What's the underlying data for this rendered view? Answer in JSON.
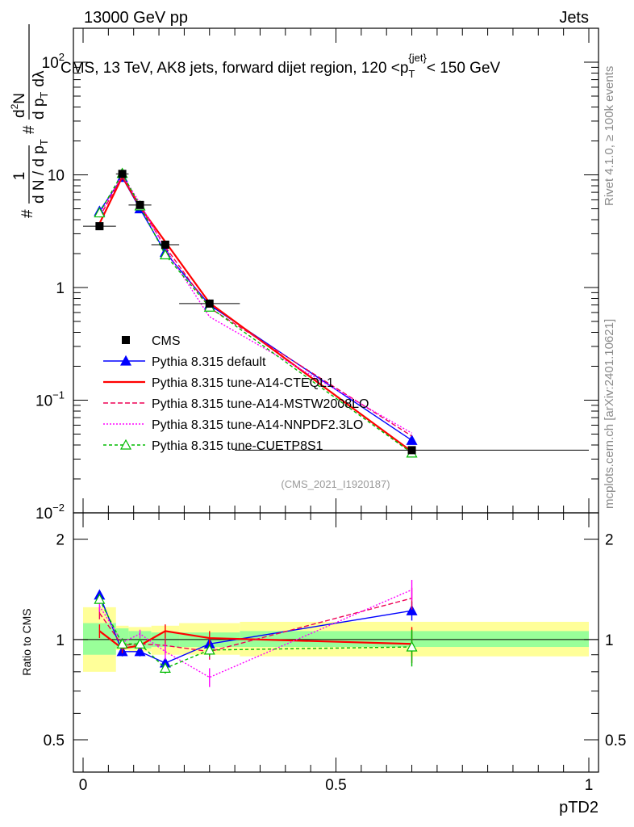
{
  "header": {
    "left": "13000 GeV pp",
    "right": "Jets"
  },
  "side_labels": {
    "rivet": "Rivet 4.1.0, ≥ 100k events",
    "mcplots": "mcplots.cern.ch [arXiv:2401.10621]"
  },
  "chart_data": [
    {
      "type": "line",
      "name": "main-panel",
      "title": "CMS, 13 TeV, AK8 jets, forward dijet region, 120 <p_T^{jet}< 150 GeV",
      "title_parts": {
        "pre": "CMS, 13 TeV, AK8 jets, forward dijet region, 120 <p",
        "sub": "T",
        "sup": "{jet}",
        "post": "< 150 GeV"
      },
      "ylabel_parts": {
        "prefix": "1",
        "denom": "d N / d p",
        "denom_sub": "T",
        "lead": "#",
        "mid": "#",
        "num": "d",
        "num_sup": "2",
        "num_tail": "N",
        "d_den": "d p",
        "d_den_sub": "T",
        "d_lambda": "dλ"
      },
      "yscale": "log",
      "ylim": [
        0.01,
        200
      ],
      "yticks": [
        {
          "value": 0.01,
          "label_base": "10",
          "label_exp": "−2"
        },
        {
          "value": 0.1,
          "label_base": "10",
          "label_exp": "−1"
        },
        {
          "value": 1,
          "label_base": "1",
          "label_exp": ""
        },
        {
          "value": 10,
          "label_base": "10",
          "label_exp": ""
        },
        {
          "value": 100,
          "label_base": "10",
          "label_exp": "2"
        }
      ],
      "xlim": [
        0,
        1
      ],
      "watermark": "(CMS_2021_I1920187)",
      "legend_position": "center-left",
      "data": {
        "name": "CMS",
        "x": [
          0.0325,
          0.0775,
          0.1125,
          0.1625,
          0.25,
          0.65
        ],
        "xerr": [
          0.0325,
          0.0125,
          0.0225,
          0.0275,
          0.06,
          0.35
        ],
        "y": [
          3.5,
          10.2,
          5.4,
          2.4,
          0.72,
          0.036
        ],
        "color": "#000000"
      },
      "series": [
        {
          "name": "Pythia 8.315 default",
          "color": "#0000ff",
          "dash": "",
          "marker": "triangle-filled",
          "y": [
            4.75,
            9.5,
            5.0,
            2.05,
            0.7,
            0.044
          ]
        },
        {
          "name": "Pythia 8.315 tune-A14-CTEQL1",
          "color": "#ff0000",
          "dash": "",
          "marker": "none",
          "y": [
            3.7,
            9.6,
            5.2,
            2.55,
            0.73,
            0.035
          ]
        },
        {
          "name": "Pythia 8.315 tune-A14-MSTW2008LO",
          "color": "#ee0055",
          "dash": "6,3",
          "marker": "none",
          "y": [
            4.2,
            9.8,
            5.2,
            2.3,
            0.66,
            0.048
          ]
        },
        {
          "name": "Pythia 8.315 tune-A14-NNPDF2.3LO",
          "color": "#ff00ff",
          "dash": "2,2",
          "marker": "none",
          "y": [
            4.4,
            10.0,
            5.6,
            2.2,
            0.55,
            0.051
          ]
        },
        {
          "name": "Pythia 8.315 tune-CUETP8S1",
          "color": "#00bb00",
          "dash": "4,3",
          "marker": "triangle-open",
          "y": [
            4.6,
            10.3,
            5.3,
            1.95,
            0.67,
            0.034
          ]
        }
      ]
    },
    {
      "type": "line",
      "name": "ratio-panel",
      "ylabel": "Ratio to CMS",
      "ylim": [
        0.4,
        2.4
      ],
      "yscale": "log",
      "yticks": [
        {
          "value": 0.5,
          "label": "0.5"
        },
        {
          "value": 1,
          "label": "1"
        },
        {
          "value": 2,
          "label": "2"
        }
      ],
      "xlabel": "pTD2",
      "xlim": [
        0,
        1
      ],
      "xticks": [
        {
          "value": 0,
          "label": "0"
        },
        {
          "value": 0.5,
          "label": "0.5"
        },
        {
          "value": 1,
          "label": "1"
        }
      ],
      "bands": {
        "edges": [
          0,
          0.065,
          0.09,
          0.135,
          0.19,
          0.31,
          1.0
        ],
        "stat": [
          [
            0.9,
            1.12
          ],
          [
            0.94,
            1.08
          ],
          [
            0.94,
            1.06
          ],
          [
            0.95,
            1.05
          ],
          [
            0.95,
            1.05
          ],
          [
            0.95,
            1.06
          ]
        ],
        "total": [
          [
            0.8,
            1.25
          ],
          [
            0.93,
            1.1
          ],
          [
            0.92,
            1.09
          ],
          [
            0.9,
            1.1
          ],
          [
            0.9,
            1.12
          ],
          [
            0.89,
            1.13
          ]
        ],
        "stat_color": "#99ff99",
        "total_color": "#ffff99"
      },
      "series": [
        {
          "name": "Pythia 8.315 default",
          "y": [
            1.36,
            0.92,
            0.92,
            0.85,
            0.97,
            1.22
          ],
          "err": [
            0.03,
            0.03,
            0.03,
            0.03,
            0.03,
            0.08
          ]
        },
        {
          "name": "Pythia 8.315 tune-A14-CTEQL1",
          "y": [
            1.06,
            0.94,
            0.96,
            1.06,
            1.01,
            0.97
          ],
          "err": [
            0.05,
            0.03,
            0.03,
            0.05,
            0.05,
            0.12
          ]
        },
        {
          "name": "Pythia 8.315 tune-A14-MSTW2008LO",
          "y": [
            1.2,
            0.96,
            0.97,
            0.96,
            0.92,
            1.33
          ],
          "err": [
            0.05,
            0.03,
            0.03,
            0.05,
            0.05,
            0.1
          ]
        },
        {
          "name": "Pythia 8.315 tune-A14-NNPDF2.3LO",
          "y": [
            1.26,
            0.98,
            1.04,
            0.92,
            0.77,
            1.41
          ],
          "err": [
            0.05,
            0.03,
            0.03,
            0.05,
            0.05,
            0.1
          ]
        },
        {
          "name": "Pythia 8.315 tune-CUETP8S1",
          "y": [
            1.32,
            0.97,
            0.97,
            0.82,
            0.93,
            0.95
          ],
          "err": [
            0.04,
            0.03,
            0.03,
            0.03,
            0.04,
            0.12
          ]
        }
      ]
    }
  ]
}
